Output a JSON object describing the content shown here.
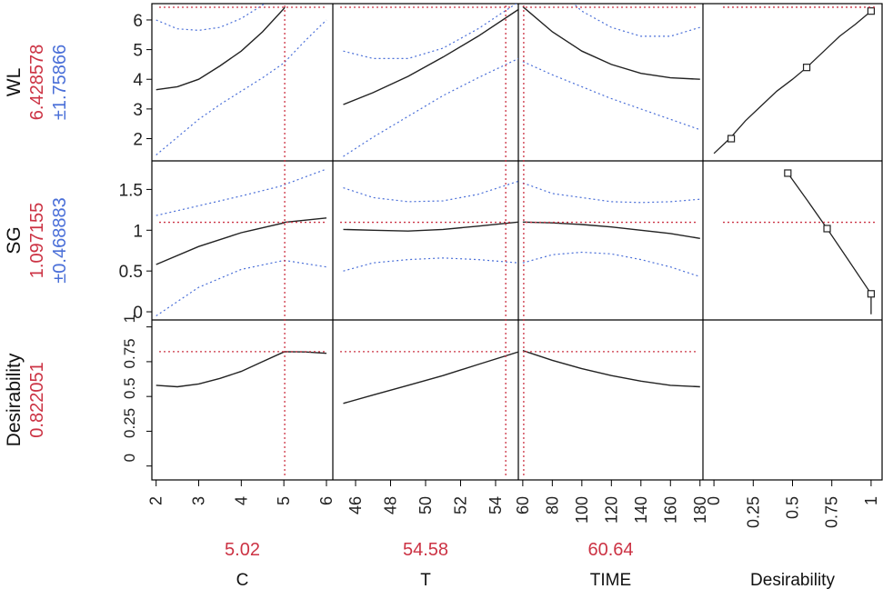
{
  "chart_data": {
    "type": "line",
    "title": "",
    "colors": {
      "current_value": "#cc3344",
      "interval": "#4a6fd8",
      "trace": "#222222",
      "frame": "#000000"
    },
    "factors": [
      {
        "name": "C",
        "current": "5.02",
        "current_value": 5.02,
        "range": [
          1.9,
          6.15
        ],
        "ticks": [
          2,
          3,
          4,
          5,
          6
        ],
        "tick_labels": [
          "2",
          "3",
          "4",
          "5",
          "6"
        ]
      },
      {
        "name": "T",
        "current": "54.58",
        "current_value": 54.58,
        "range": [
          44.7,
          55.3
        ],
        "ticks": [
          46,
          48,
          50,
          52,
          54
        ],
        "tick_labels": [
          "46",
          "48",
          "50",
          "52",
          "54"
        ]
      },
      {
        "name": "TIME",
        "current": "60.64",
        "current_value": 60.64,
        "range": [
          57,
          182
        ],
        "ticks": [
          60,
          80,
          100,
          120,
          140,
          160,
          180
        ],
        "tick_labels": [
          "60",
          "80",
          "100",
          "120",
          "140",
          "160",
          "180"
        ]
      },
      {
        "name": "Desirability",
        "current": "",
        "range": [
          -0.07,
          1.07
        ],
        "ticks": [
          0,
          0.25,
          0.5,
          0.75,
          1
        ],
        "tick_labels": [
          "0",
          "0.25",
          "0.5",
          "0.75",
          "1"
        ]
      }
    ],
    "responses": [
      {
        "name": "WL",
        "value": "6.428578",
        "value_num": 6.428578,
        "interval": "±1.75866",
        "range": [
          1.25,
          6.55
        ],
        "ticks": [
          2,
          3,
          4,
          5,
          6
        ],
        "tick_labels": [
          "2",
          "3",
          "4",
          "5",
          "6"
        ],
        "traces": [
          {
            "x": [
              2,
              2.5,
              3,
              3.5,
              4,
              4.5,
              5,
              5.02
            ],
            "y": [
              3.65,
              3.75,
              4.0,
              4.45,
              4.95,
              5.6,
              6.38,
              6.43
            ],
            "lower": [
              1.45,
              2.05,
              2.65,
              3.15,
              3.6,
              4.05,
              4.55,
              4.58
            ],
            "upper": [
              6.0,
              5.7,
              5.65,
              5.75,
              6.05,
              6.5,
              7.2,
              7.22
            ],
            "x_ext": [
              5.02,
              5.5,
              6.0
            ],
            "lower_ext": [
              4.58,
              5.3,
              6.0
            ]
          },
          {
            "x": [
              45.3,
              47,
              49,
              51,
              53,
              55.3
            ],
            "y": [
              3.15,
              3.55,
              4.1,
              4.75,
              5.45,
              6.35
            ],
            "lower": [
              1.4,
              2.05,
              2.75,
              3.45,
              4.05,
              4.7
            ],
            "upper": [
              4.95,
              4.7,
              4.7,
              5.05,
              5.7,
              6.6
            ]
          },
          {
            "x": [
              60,
              80,
              100,
              120,
              140,
              160,
              180
            ],
            "y": [
              6.45,
              5.6,
              4.95,
              4.5,
              4.2,
              4.05,
              4.0
            ],
            "lower": [
              4.6,
              4.15,
              3.75,
              3.35,
              3.0,
              2.65,
              2.3
            ],
            "upper": [
              8.4,
              7.2,
              6.3,
              5.75,
              5.45,
              5.45,
              5.75
            ]
          }
        ],
        "desirability_fn": {
          "x": [
            0.0,
            0.1,
            0.2,
            0.3,
            0.4,
            0.5,
            0.59,
            0.7,
            0.8,
            0.9,
            1.0
          ],
          "y": [
            1.5,
            2.0,
            2.6,
            3.1,
            3.6,
            4.0,
            4.4,
            4.95,
            5.45,
            5.85,
            6.3
          ],
          "markers": [
            [
              0.11,
              2.0
            ],
            [
              0.59,
              4.4
            ],
            [
              1.0,
              6.3
            ]
          ]
        },
        "desirability_level": 6.43
      },
      {
        "name": "SG",
        "value": "1.097155",
        "value_num": 1.097155,
        "interval": "±0.468883",
        "range": [
          -0.1,
          1.85
        ],
        "ticks": [
          0,
          0.5,
          1,
          1.5
        ],
        "tick_labels": [
          "0",
          "0.5",
          "1",
          "1.5"
        ],
        "traces": [
          {
            "x": [
              2,
              3,
              4,
              5,
              5.02,
              6
            ],
            "y": [
              0.58,
              0.8,
              0.97,
              1.09,
              1.097,
              1.15
            ],
            "lower": [
              -0.05,
              0.3,
              0.52,
              0.63,
              0.63,
              0.55
            ],
            "upper": [
              1.18,
              1.3,
              1.42,
              1.55,
              1.56,
              1.75
            ]
          },
          {
            "x": [
              45.3,
              47,
              49,
              51,
              53,
              55.3
            ],
            "y": [
              1.01,
              1.0,
              0.99,
              1.01,
              1.05,
              1.1
            ],
            "lower": [
              0.5,
              0.6,
              0.64,
              0.66,
              0.64,
              0.6
            ],
            "upper": [
              1.52,
              1.4,
              1.35,
              1.36,
              1.44,
              1.6
            ]
          },
          {
            "x": [
              60,
              80,
              100,
              120,
              140,
              160,
              180
            ],
            "y": [
              1.1,
              1.09,
              1.07,
              1.04,
              1.0,
              0.96,
              0.9
            ],
            "lower": [
              0.6,
              0.7,
              0.73,
              0.71,
              0.64,
              0.55,
              0.43
            ],
            "upper": [
              1.58,
              1.45,
              1.4,
              1.35,
              1.34,
              1.35,
              1.38
            ]
          }
        ],
        "desirability_fn": {
          "x": [
            0.47,
            0.6,
            0.72,
            0.85,
            1.0,
            1.0
          ],
          "y": [
            1.7,
            1.35,
            1.02,
            0.65,
            0.22,
            -0.03
          ],
          "markers": [
            [
              0.47,
              1.7
            ],
            [
              0.72,
              1.02
            ],
            [
              1.0,
              0.22
            ]
          ]
        },
        "desirability_level": 1.097
      },
      {
        "name": "Desirability",
        "value": "0.822051",
        "value_num": 0.822051,
        "interval": "",
        "range": [
          -0.1,
          1.05
        ],
        "ticks": [
          0,
          0.25,
          0.5,
          0.75,
          1
        ],
        "tick_labels": [
          "0",
          "0.25",
          "0.5",
          "0.75",
          "1"
        ],
        "traces": [
          {
            "x": [
              2,
              2.5,
              3,
              3.5,
              4,
              4.5,
              5,
              5.02,
              5.5,
              6
            ],
            "y": [
              0.58,
              0.57,
              0.59,
              0.63,
              0.68,
              0.75,
              0.82,
              0.822,
              0.82,
              0.81
            ]
          },
          {
            "x": [
              45.3,
              47,
              49,
              51,
              53,
              55.3
            ],
            "y": [
              0.45,
              0.51,
              0.58,
              0.65,
              0.73,
              0.82
            ]
          },
          {
            "x": [
              60,
              80,
              100,
              120,
              140,
              160,
              180
            ],
            "y": [
              0.83,
              0.76,
              0.7,
              0.65,
              0.61,
              0.58,
              0.57
            ]
          }
        ]
      }
    ]
  }
}
